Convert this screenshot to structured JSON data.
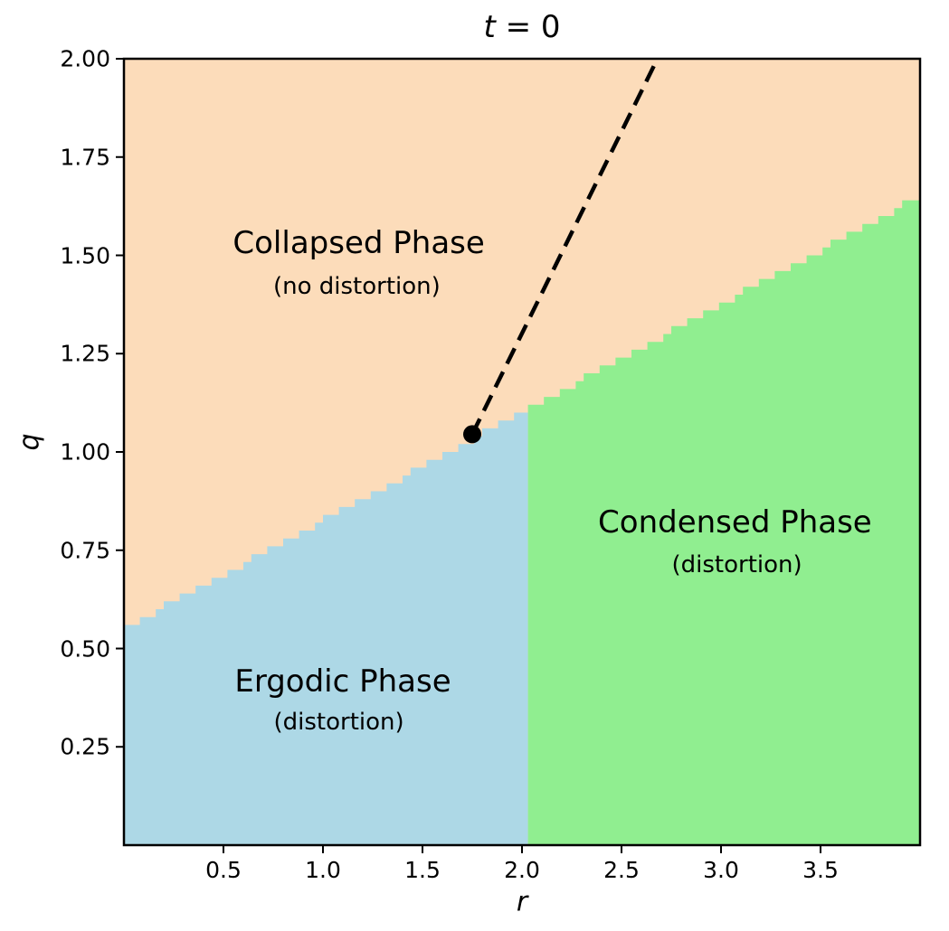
{
  "figure": {
    "title": {
      "variable": "t",
      "rest": " = 0"
    },
    "xlabel": "r",
    "ylabel": "q"
  },
  "chart_data": {
    "type": "heatmap",
    "subtype": "phase-diagram",
    "title": "t = 0",
    "xlabel": "r",
    "ylabel": "q",
    "xlim": [
      0,
      4
    ],
    "ylim": [
      0,
      2
    ],
    "grid": false,
    "x_tick_values": [
      0.5,
      1.0,
      1.5,
      2.0,
      2.5,
      3.0,
      3.5
    ],
    "x_tick_labels": [
      "0.5",
      "1.0",
      "1.5",
      "2.0",
      "2.5",
      "3.0",
      "3.5"
    ],
    "y_tick_values": [
      2.0,
      1.75,
      1.5,
      1.25,
      1.0,
      0.75,
      0.5,
      0.25
    ],
    "y_tick_labels": [
      "2.00",
      "1.75",
      "1.50",
      "1.25",
      "1.00",
      "0.75",
      "0.50",
      "0.25"
    ],
    "regions": [
      {
        "id": "collapsed",
        "label": "Collapsed Phase",
        "sublabel": "(no distortion)",
        "color": "#FCDCBA",
        "label_at": {
          "r": 1.18,
          "q": 1.53
        },
        "sublabel_at": {
          "r": 1.17,
          "q": 1.42
        }
      },
      {
        "id": "ergodic",
        "label": "Ergodic Phase",
        "sublabel": "(distortion)",
        "color": "#ADD8E6",
        "label_at": {
          "r": 1.1,
          "q": 0.417
        },
        "sublabel_at": {
          "r": 1.08,
          "q": 0.313
        }
      },
      {
        "id": "condensed",
        "label": "Condensed Phase",
        "sublabel": "(distortion)",
        "color": "#90EE90",
        "label_at": {
          "r": 3.07,
          "q": 0.821
        },
        "sublabel_at": {
          "r": 3.08,
          "q": 0.713
        }
      }
    ],
    "boundaries": {
      "collapsed_boundary": {
        "q_intercept": 0.55,
        "slope": 0.275,
        "r_range": [
          0,
          4
        ]
      },
      "ergodic_condensed_split_r": 2.03,
      "grid_resolution": 100
    },
    "marker": {
      "r": 1.75,
      "q": 1.045,
      "color": "#000000",
      "radius_px": 10
    },
    "dashed_line": {
      "from": {
        "r": 1.75,
        "q": 1.045
      },
      "to": {
        "r": 2.7,
        "q": 2.02
      },
      "color": "#000000",
      "style": "dashed"
    },
    "frame_color": "#000000"
  }
}
